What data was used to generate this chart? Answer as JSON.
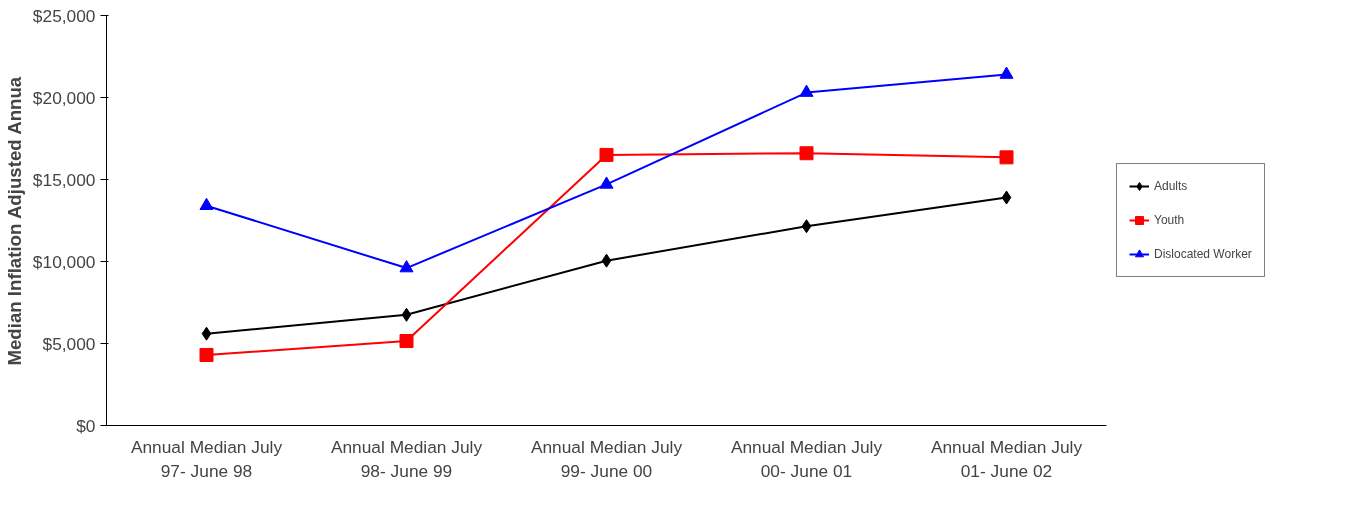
{
  "chart_data": {
    "type": "line",
    "ylabel": "Median Inflation Adjusted Annua",
    "categories": [
      "Annual Median July\n97- June 98",
      "Annual Median July\n98- June 99",
      "Annual Median July\n99- June 00",
      "Annual Median July\n00- June 01",
      "Annual Median July\n01- June 02"
    ],
    "series": [
      {
        "name": "Adults",
        "color": "#000000",
        "marker": "diamond",
        "values": [
          5600,
          6750,
          10050,
          12150,
          13900
        ]
      },
      {
        "name": "Youth",
        "color": "#ff0000",
        "marker": "square",
        "values": [
          4300,
          5150,
          16500,
          16600,
          16350
        ]
      },
      {
        "name": "Dislocated Worker",
        "color": "#0000ff",
        "marker": "triangle",
        "values": [
          13400,
          9600,
          14700,
          20300,
          21400
        ]
      }
    ],
    "ylim": [
      0,
      25000
    ],
    "yticks": [
      {
        "value": 0,
        "label": "$0"
      },
      {
        "value": 5000,
        "label": "$5,000"
      },
      {
        "value": 10000,
        "label": "$10,000"
      },
      {
        "value": 15000,
        "label": "$15,000"
      },
      {
        "value": 20000,
        "label": "$20,000"
      },
      {
        "value": 25000,
        "label": "$25,000"
      }
    ],
    "grid": false,
    "legend": "right"
  }
}
